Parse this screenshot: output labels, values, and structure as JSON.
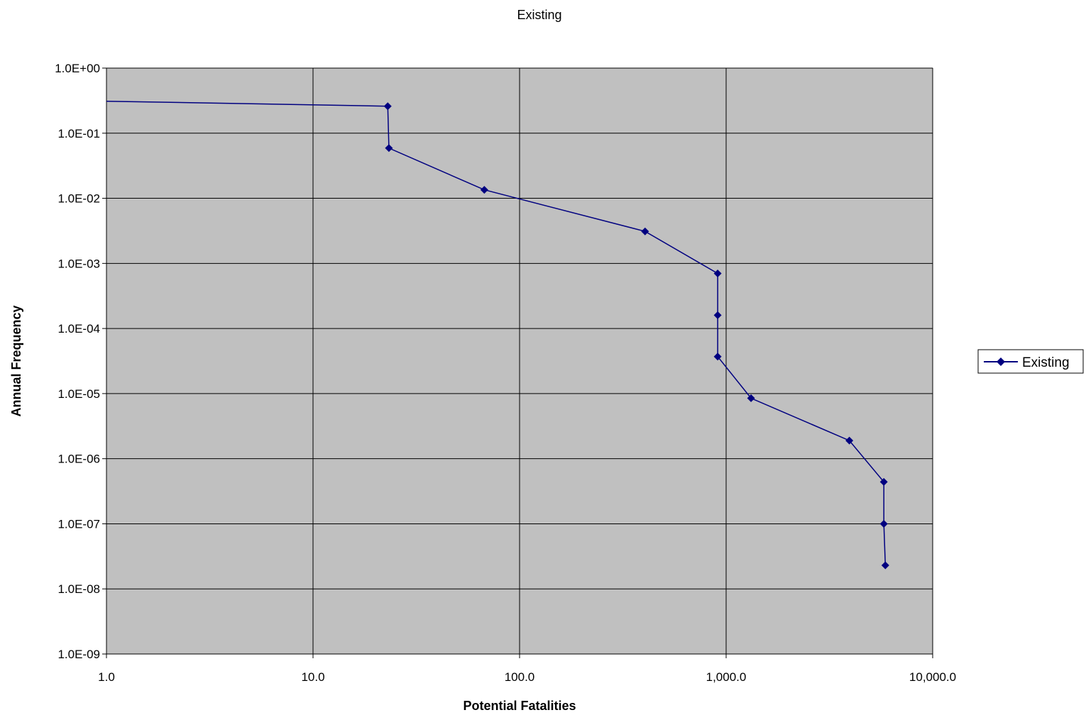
{
  "chart_data": {
    "type": "line",
    "title": "Existing",
    "xlabel": "Potential Fatalities",
    "ylabel": "Annual Frequency",
    "x_scale": "log",
    "y_scale": "log",
    "xlim": [
      1,
      10000
    ],
    "ylim": [
      1e-09,
      1
    ],
    "x_ticks": [
      {
        "value": 1,
        "label": "1.0"
      },
      {
        "value": 10,
        "label": "10.0"
      },
      {
        "value": 100,
        "label": "100.0"
      },
      {
        "value": 1000,
        "label": "1,000.0"
      },
      {
        "value": 10000,
        "label": "10,000.0"
      }
    ],
    "y_ticks": [
      {
        "value": 1,
        "label": "1.0E+00"
      },
      {
        "value": 0.1,
        "label": "1.0E-01"
      },
      {
        "value": 0.01,
        "label": "1.0E-02"
      },
      {
        "value": 0.001,
        "label": "1.0E-03"
      },
      {
        "value": 0.0001,
        "label": "1.0E-04"
      },
      {
        "value": 1e-05,
        "label": "1.0E-05"
      },
      {
        "value": 1e-06,
        "label": "1.0E-06"
      },
      {
        "value": 1e-07,
        "label": "1.0E-07"
      },
      {
        "value": 1e-08,
        "label": "1.0E-08"
      },
      {
        "value": 1e-09,
        "label": "1.0E-09"
      }
    ],
    "grid": true,
    "plot_background": "#c0c0c0",
    "legend_position": "right",
    "series": [
      {
        "name": "Existing",
        "color": "#000080",
        "marker": "diamond",
        "lead_in": {
          "x": 1,
          "y": 0.31
        },
        "points": [
          {
            "x": 23,
            "y": 0.26
          },
          {
            "x": 23.3,
            "y": 0.059
          },
          {
            "x": 67.5,
            "y": 0.0135
          },
          {
            "x": 405,
            "y": 0.0031
          },
          {
            "x": 910,
            "y": 0.0007
          },
          {
            "x": 910,
            "y": 0.00016
          },
          {
            "x": 910,
            "y": 3.7e-05
          },
          {
            "x": 1320,
            "y": 8.5e-06
          },
          {
            "x": 3950,
            "y": 1.9e-06
          },
          {
            "x": 5800,
            "y": 4.4e-07
          },
          {
            "x": 5800,
            "y": 1e-07
          },
          {
            "x": 5900,
            "y": 2.3e-08
          }
        ]
      }
    ]
  }
}
